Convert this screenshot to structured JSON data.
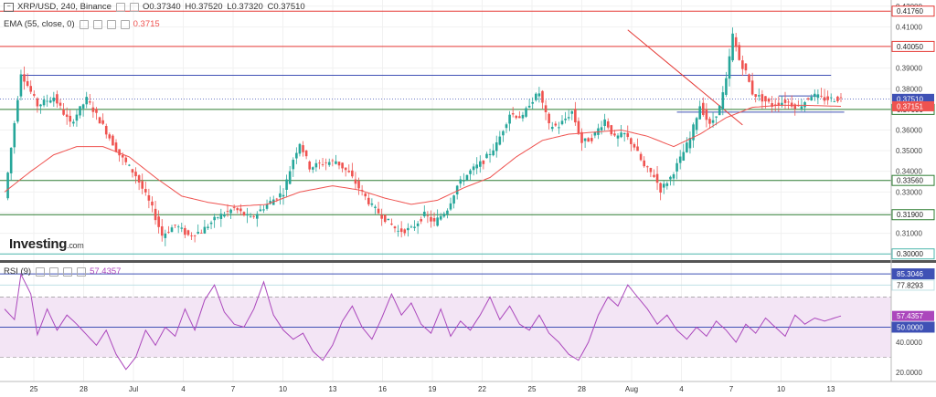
{
  "header": {
    "symbol": "XRP/USD, 240, Binance",
    "ohlc": {
      "o": "O0.37340",
      "h": "H0.37520",
      "l": "L0.37320",
      "c": "C0.37510"
    },
    "ema_label": "EMA (55, close, 0)",
    "ema_value": "0.3715",
    "rsi_label": "RSI (9)",
    "rsi_value": "57.4357"
  },
  "brand": {
    "name": "Investing",
    "suffix": ".com"
  },
  "colors": {
    "up": "#26a69a",
    "down": "#ef5350",
    "ema": "#ef5350",
    "resistance": "#e53935",
    "support": "#2e7d32",
    "channel": "#3f51b5",
    "rsi": "#ab47bc",
    "rsi_band": "#f3e5f5"
  },
  "chart_data": [
    {
      "type": "candlestick",
      "title": "XRP/USD, 240, Binance",
      "xlabel": "",
      "ylabel": "",
      "ylim": [
        0.297,
        0.423
      ],
      "x_ticks": [
        "25",
        "28",
        "Jul",
        "4",
        "7",
        "10",
        "13",
        "16",
        "19",
        "22",
        "25",
        "28",
        "Aug",
        "4",
        "7",
        "10",
        "13"
      ],
      "y_ticks": [
        "0.42000",
        "0.41000",
        "0.39000",
        "0.38000",
        "0.36000",
        "0.35000",
        "0.34000",
        "0.33000",
        "0.32000",
        "0.31000"
      ],
      "price_path": [
        [
          0,
          0.327
        ],
        [
          5,
          0.388
        ],
        [
          10,
          0.372
        ],
        [
          15,
          0.376
        ],
        [
          20,
          0.363
        ],
        [
          25,
          0.375
        ],
        [
          30,
          0.362
        ],
        [
          35,
          0.348
        ],
        [
          40,
          0.338
        ],
        [
          45,
          0.322
        ],
        [
          48,
          0.309
        ],
        [
          52,
          0.314
        ],
        [
          56,
          0.309
        ],
        [
          60,
          0.311
        ],
        [
          65,
          0.318
        ],
        [
          70,
          0.322
        ],
        [
          75,
          0.317
        ],
        [
          80,
          0.324
        ],
        [
          85,
          0.33
        ],
        [
          88,
          0.346
        ],
        [
          90,
          0.354
        ],
        [
          93,
          0.342
        ],
        [
          97,
          0.344
        ],
        [
          101,
          0.345
        ],
        [
          105,
          0.339
        ],
        [
          108,
          0.332
        ],
        [
          112,
          0.323
        ],
        [
          116,
          0.317
        ],
        [
          120,
          0.311
        ],
        [
          124,
          0.312
        ],
        [
          128,
          0.319
        ],
        [
          131,
          0.315
        ],
        [
          135,
          0.322
        ],
        [
          138,
          0.333
        ],
        [
          142,
          0.34
        ],
        [
          146,
          0.345
        ],
        [
          150,
          0.353
        ],
        [
          154,
          0.368
        ],
        [
          158,
          0.366
        ],
        [
          160,
          0.373
        ],
        [
          163,
          0.378
        ],
        [
          166,
          0.362
        ],
        [
          169,
          0.362
        ],
        [
          173,
          0.369
        ],
        [
          176,
          0.354
        ],
        [
          179,
          0.356
        ],
        [
          183,
          0.365
        ],
        [
          186,
          0.356
        ],
        [
          189,
          0.358
        ],
        [
          192,
          0.352
        ],
        [
          195,
          0.342
        ],
        [
          198,
          0.338
        ],
        [
          200,
          0.331
        ],
        [
          203,
          0.337
        ],
        [
          206,
          0.346
        ],
        [
          209,
          0.356
        ],
        [
          212,
          0.372
        ],
        [
          215,
          0.362
        ],
        [
          218,
          0.371
        ],
        [
          220,
          0.384
        ],
        [
          222,
          0.406
        ],
        [
          224,
          0.394
        ],
        [
          226,
          0.388
        ],
        [
          228,
          0.378
        ],
        [
          230,
          0.376
        ],
        [
          234,
          0.372
        ],
        [
          238,
          0.374
        ],
        [
          242,
          0.371
        ],
        [
          246,
          0.377
        ],
        [
          250,
          0.375
        ],
        [
          255,
          0.3751
        ]
      ],
      "ema_path": [
        [
          0,
          0.33
        ],
        [
          8,
          0.34
        ],
        [
          15,
          0.348
        ],
        [
          22,
          0.352
        ],
        [
          30,
          0.352
        ],
        [
          38,
          0.347
        ],
        [
          46,
          0.337
        ],
        [
          54,
          0.328
        ],
        [
          62,
          0.325
        ],
        [
          70,
          0.323
        ],
        [
          80,
          0.324
        ],
        [
          90,
          0.33
        ],
        [
          100,
          0.333
        ],
        [
          108,
          0.331
        ],
        [
          116,
          0.327
        ],
        [
          124,
          0.324
        ],
        [
          132,
          0.326
        ],
        [
          140,
          0.332
        ],
        [
          148,
          0.337
        ],
        [
          156,
          0.347
        ],
        [
          164,
          0.355
        ],
        [
          172,
          0.358
        ],
        [
          180,
          0.359
        ],
        [
          188,
          0.36
        ],
        [
          196,
          0.357
        ],
        [
          204,
          0.352
        ],
        [
          212,
          0.358
        ],
        [
          220,
          0.366
        ],
        [
          228,
          0.371
        ],
        [
          236,
          0.372
        ],
        [
          244,
          0.372
        ],
        [
          255,
          0.3715
        ]
      ],
      "hlines": [
        {
          "value": 0.4176,
          "label": "0.41760",
          "color": "#e53935"
        },
        {
          "value": 0.4005,
          "label": "0.40050",
          "color": "#e53935"
        },
        {
          "value": 0.37,
          "label": "0.37000",
          "color": "#2e7d32"
        },
        {
          "value": 0.3356,
          "label": "0.33560",
          "color": "#2e7d32"
        },
        {
          "value": 0.319,
          "label": "0.31900",
          "color": "#2e7d32"
        },
        {
          "value": 0.3,
          "label": "0.30000",
          "color": "#4db6ac"
        }
      ],
      "price_badges": [
        {
          "value": 0.3751,
          "label": "0.37510",
          "color": "#3f51b5"
        },
        {
          "value": 0.37151,
          "label": "0.37151",
          "color": "#ef5350"
        }
      ],
      "segments": [
        {
          "x1": 5,
          "y1": 0.3865,
          "x2": 252,
          "y2": 0.3865,
          "color": "#3f51b5"
        },
        {
          "x1": 236,
          "y1": 0.3765,
          "x2": 248,
          "y2": 0.3765,
          "color": "#3f51b5"
        },
        {
          "x1": 205,
          "y1": 0.3687,
          "x2": 256,
          "y2": 0.3687,
          "color": "#3f51b5"
        },
        {
          "x1": 190,
          "y1": 0.4085,
          "x2": 225,
          "y2": 0.3625,
          "color": "#e53935"
        }
      ]
    },
    {
      "type": "line",
      "title": "RSI (9)",
      "xlabel": "",
      "ylabel": "",
      "ylim": [
        14,
        92
      ],
      "y_ticks": [
        "40.0000",
        "20.0000"
      ],
      "levels": [
        {
          "value": 85.3046,
          "label": "85.3046",
          "color": "#3f51b5"
        },
        {
          "value": 77.8293,
          "label": "77.8293",
          "color": "#bfe0e4"
        },
        {
          "value": 50.0,
          "label": "50.0000",
          "color": "#3f51b5"
        }
      ],
      "value_badge": {
        "value": 57.4357,
        "label": "57.4357",
        "color": "#ab47bc"
      },
      "band": [
        30,
        70
      ],
      "rsi_path": [
        [
          0,
          62
        ],
        [
          3,
          55
        ],
        [
          5,
          85
        ],
        [
          8,
          72
        ],
        [
          10,
          45
        ],
        [
          13,
          62
        ],
        [
          16,
          48
        ],
        [
          19,
          58
        ],
        [
          22,
          52
        ],
        [
          25,
          45
        ],
        [
          28,
          38
        ],
        [
          31,
          48
        ],
        [
          34,
          32
        ],
        [
          37,
          22
        ],
        [
          40,
          30
        ],
        [
          43,
          48
        ],
        [
          46,
          38
        ],
        [
          49,
          50
        ],
        [
          52,
          44
        ],
        [
          55,
          62
        ],
        [
          58,
          48
        ],
        [
          61,
          68
        ],
        [
          64,
          78
        ],
        [
          67,
          60
        ],
        [
          70,
          52
        ],
        [
          73,
          50
        ],
        [
          76,
          62
        ],
        [
          79,
          80
        ],
        [
          82,
          58
        ],
        [
          85,
          48
        ],
        [
          88,
          42
        ],
        [
          91,
          46
        ],
        [
          94,
          34
        ],
        [
          97,
          28
        ],
        [
          100,
          38
        ],
        [
          103,
          54
        ],
        [
          106,
          64
        ],
        [
          109,
          50
        ],
        [
          112,
          42
        ],
        [
          115,
          56
        ],
        [
          118,
          72
        ],
        [
          121,
          58
        ],
        [
          124,
          66
        ],
        [
          127,
          52
        ],
        [
          130,
          46
        ],
        [
          133,
          62
        ],
        [
          136,
          44
        ],
        [
          139,
          54
        ],
        [
          142,
          48
        ],
        [
          145,
          58
        ],
        [
          148,
          70
        ],
        [
          151,
          55
        ],
        [
          154,
          64
        ],
        [
          157,
          52
        ],
        [
          160,
          48
        ],
        [
          163,
          58
        ],
        [
          166,
          46
        ],
        [
          169,
          40
        ],
        [
          172,
          32
        ],
        [
          175,
          28
        ],
        [
          178,
          40
        ],
        [
          181,
          58
        ],
        [
          184,
          70
        ],
        [
          187,
          64
        ],
        [
          190,
          78
        ],
        [
          193,
          70
        ],
        [
          196,
          62
        ],
        [
          199,
          52
        ],
        [
          202,
          58
        ],
        [
          205,
          48
        ],
        [
          208,
          42
        ],
        [
          211,
          50
        ],
        [
          214,
          44
        ],
        [
          217,
          54
        ],
        [
          220,
          48
        ],
        [
          223,
          40
        ],
        [
          226,
          52
        ],
        [
          229,
          46
        ],
        [
          232,
          56
        ],
        [
          235,
          50
        ],
        [
          238,
          44
        ],
        [
          241,
          58
        ],
        [
          244,
          52
        ],
        [
          247,
          56
        ],
        [
          250,
          54
        ],
        [
          255,
          57.4357
        ]
      ]
    }
  ]
}
